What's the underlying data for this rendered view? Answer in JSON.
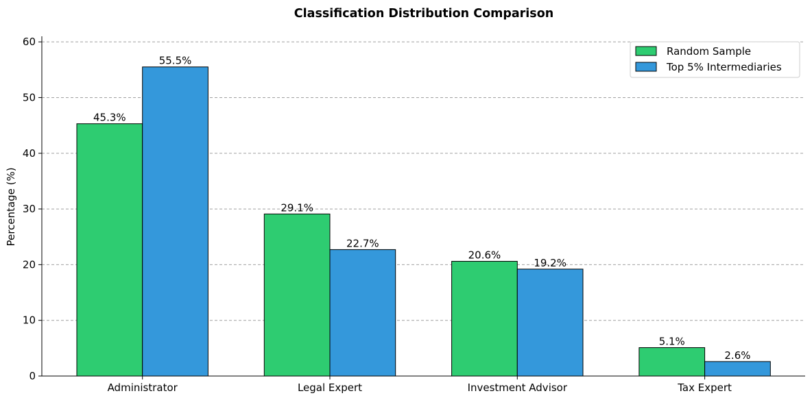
{
  "chart_data": {
    "type": "bar",
    "title": "Classification Distribution Comparison",
    "xlabel": "",
    "ylabel": "Percentage (%)",
    "ylim": [
      0,
      61
    ],
    "yticks": [
      0,
      10,
      20,
      30,
      40,
      50,
      60
    ],
    "grid": "y-dashed",
    "legend_position": "top-right",
    "categories": [
      "Administrator",
      "Legal Expert",
      "Investment Advisor",
      "Tax Expert"
    ],
    "series": [
      {
        "name": "Random Sample",
        "color": "#2ecc71",
        "values": [
          45.3,
          29.1,
          20.6,
          5.1
        ],
        "labels": [
          "45.3%",
          "29.1%",
          "20.6%",
          "5.1%"
        ]
      },
      {
        "name": "Top 5% Intermediaries",
        "color": "#3498db",
        "values": [
          55.5,
          22.7,
          19.2,
          2.6
        ],
        "labels": [
          "55.5%",
          "22.7%",
          "19.2%",
          "2.6%"
        ]
      }
    ]
  }
}
